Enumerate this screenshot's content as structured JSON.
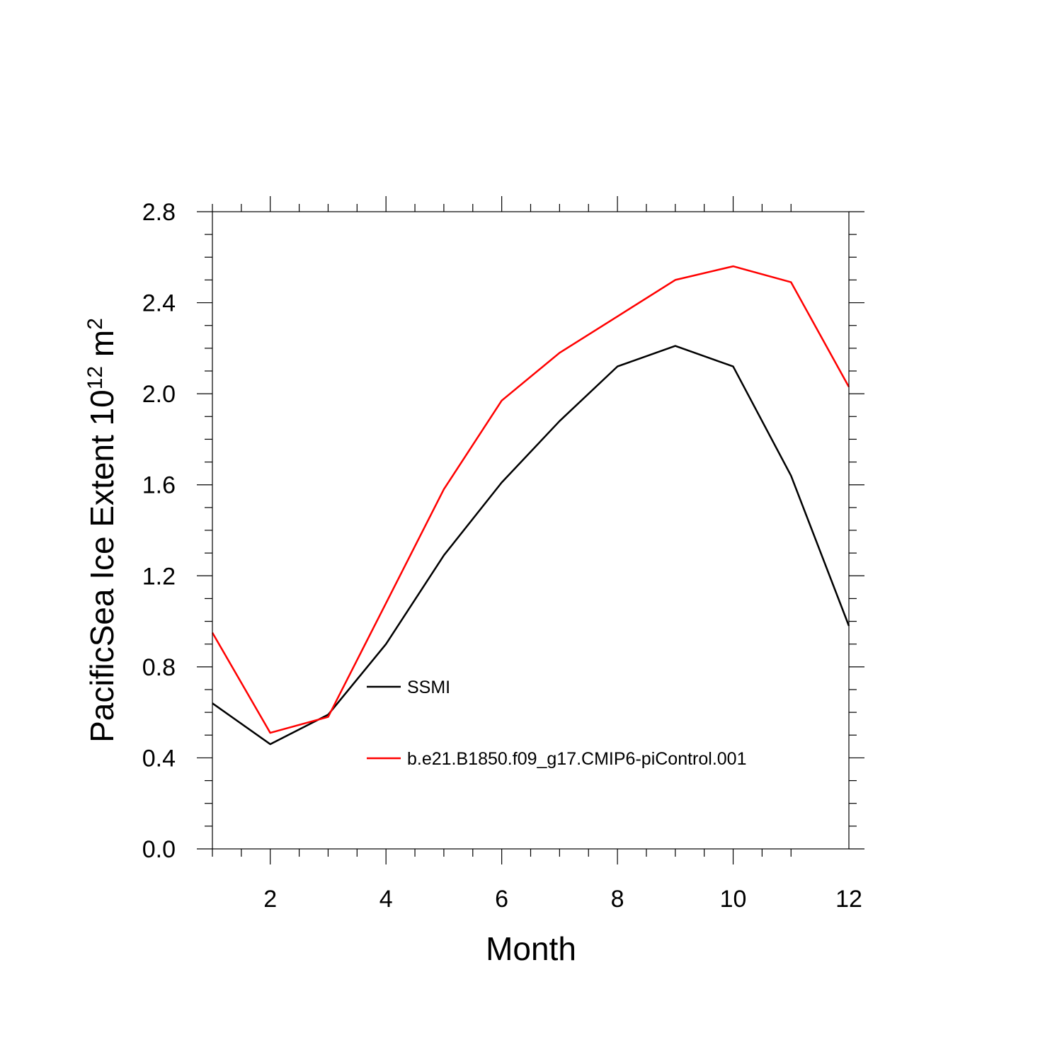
{
  "chart_data": {
    "type": "line",
    "xlabel": "Month",
    "ylabel": {
      "main": "PacificSea Ice Extent 10",
      "sup1": "12",
      "mid": " m",
      "sup2": "2"
    },
    "xlim": [
      1,
      12
    ],
    "ylim": [
      0.0,
      2.8
    ],
    "x_ticks": [
      2,
      4,
      6,
      8,
      10,
      12
    ],
    "x_tick_labels": [
      "2",
      "4",
      "6",
      "8",
      "10",
      "12"
    ],
    "y_ticks": [
      0.0,
      0.4,
      0.8,
      1.2,
      1.6,
      2.0,
      2.4,
      2.8
    ],
    "y_tick_labels": [
      "0.0",
      "0.4",
      "0.8",
      "1.2",
      "1.6",
      "2.0",
      "2.4",
      "2.8"
    ],
    "grid": false,
    "legend_position": "center-right",
    "x": [
      1,
      2,
      3,
      4,
      5,
      6,
      7,
      8,
      9,
      10,
      11,
      12
    ],
    "series": [
      {
        "name": "SSMI",
        "color": "#000000",
        "values": [
          0.64,
          0.46,
          0.59,
          0.9,
          1.29,
          1.61,
          1.88,
          2.12,
          2.21,
          2.12,
          1.64,
          0.98
        ]
      },
      {
        "name": "b.e21.B1850.f09_g17.CMIP6-piControl.001",
        "color": "#ff0000",
        "values": [
          0.95,
          0.51,
          0.58,
          1.08,
          1.58,
          1.97,
          2.18,
          2.34,
          2.5,
          2.56,
          2.49,
          2.03
        ]
      }
    ]
  }
}
